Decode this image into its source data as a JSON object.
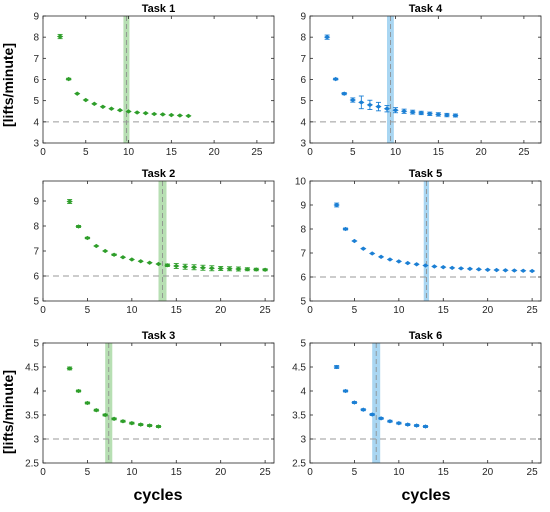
{
  "figure": {
    "ylabel": "[lifts/minute]",
    "xlabel": "cycles"
  },
  "chart_data": [
    {
      "type": "scatter",
      "title": "Task 1",
      "color": "#2e9e2a",
      "band_color": "#9fd49a",
      "xlim": [
        0,
        27
      ],
      "ylim": [
        3,
        9
      ],
      "xticks": [
        0,
        5,
        10,
        15,
        20,
        25
      ],
      "yticks": [
        3,
        4,
        5,
        6,
        7,
        8,
        9
      ],
      "ref_line": 4,
      "band": [
        9.4,
        10.1
      ],
      "band_center": 9.75,
      "x": [
        2,
        3,
        4,
        5,
        6,
        7,
        8,
        9,
        10,
        11,
        12,
        13,
        14,
        15,
        16,
        17
      ],
      "y": [
        8.03,
        6.02,
        5.33,
        5.03,
        4.85,
        4.71,
        4.62,
        4.55,
        4.49,
        4.44,
        4.41,
        4.37,
        4.35,
        4.32,
        4.3,
        4.28
      ],
      "err": [
        0.1,
        0.04,
        0.03,
        0.03,
        0.03,
        0.03,
        0.03,
        0.03,
        0.03,
        0.03,
        0.03,
        0.03,
        0.03,
        0.03,
        0.03,
        0.03
      ]
    },
    {
      "type": "scatter",
      "title": "Task 4",
      "color": "#1b7fd4",
      "band_color": "#8cc8ee",
      "xlim": [
        0,
        27
      ],
      "ylim": [
        3,
        9
      ],
      "xticks": [
        0,
        5,
        10,
        15,
        20,
        25
      ],
      "yticks": [
        3,
        4,
        5,
        6,
        7,
        8,
        9
      ],
      "ref_line": 4,
      "band": [
        9.0,
        9.8
      ],
      "band_center": 9.4,
      "x": [
        2,
        3,
        4,
        5,
        6,
        7,
        8,
        9,
        10,
        11,
        12,
        13,
        14,
        15,
        16,
        17
      ],
      "y": [
        8.0,
        6.02,
        5.33,
        5.03,
        4.92,
        4.8,
        4.72,
        4.62,
        4.55,
        4.5,
        4.46,
        4.42,
        4.38,
        4.35,
        4.32,
        4.3
      ],
      "err": [
        0.1,
        0.04,
        0.05,
        0.1,
        0.3,
        0.22,
        0.2,
        0.15,
        0.12,
        0.1,
        0.09,
        0.08,
        0.08,
        0.08,
        0.08,
        0.07
      ]
    },
    {
      "type": "scatter",
      "title": "Task 2",
      "color": "#2e9e2a",
      "band_color": "#9fd49a",
      "xlim": [
        0,
        26
      ],
      "ylim": [
        5,
        9.8
      ],
      "xticks": [
        0,
        5,
        10,
        15,
        20,
        25
      ],
      "yticks": [
        5,
        6,
        7,
        8,
        9
      ],
      "ref_line": 6,
      "band": [
        13.0,
        13.9
      ],
      "band_center": 13.45,
      "x": [
        3,
        4,
        5,
        6,
        7,
        8,
        9,
        10,
        11,
        12,
        13,
        14,
        15,
        16,
        17,
        18,
        19,
        20,
        21,
        22,
        23,
        24,
        25
      ],
      "y": [
        8.98,
        7.98,
        7.52,
        7.2,
        7.0,
        6.85,
        6.75,
        6.66,
        6.59,
        6.53,
        6.48,
        6.43,
        6.4,
        6.37,
        6.35,
        6.33,
        6.31,
        6.3,
        6.29,
        6.28,
        6.27,
        6.26,
        6.25
      ],
      "err": [
        0.08,
        0.04,
        0.03,
        0.03,
        0.03,
        0.03,
        0.03,
        0.03,
        0.03,
        0.03,
        0.03,
        0.05,
        0.1,
        0.1,
        0.1,
        0.1,
        0.1,
        0.08,
        0.08,
        0.08,
        0.06,
        0.05,
        0.04
      ]
    },
    {
      "type": "scatter",
      "title": "Task 5",
      "color": "#1b7fd4",
      "band_color": "#8cc8ee",
      "xlim": [
        0,
        26
      ],
      "ylim": [
        5,
        10
      ],
      "xticks": [
        0,
        5,
        10,
        15,
        20,
        25
      ],
      "yticks": [
        5,
        6,
        7,
        8,
        9,
        10
      ],
      "ref_line": 6,
      "band": [
        12.8,
        13.4
      ],
      "band_center": 13.1,
      "x": [
        3,
        4,
        5,
        6,
        7,
        8,
        9,
        10,
        11,
        12,
        13,
        14,
        15,
        16,
        17,
        18,
        19,
        20,
        21,
        22,
        23,
        24,
        25
      ],
      "y": [
        9.0,
        8.0,
        7.5,
        7.18,
        6.98,
        6.84,
        6.73,
        6.65,
        6.58,
        6.53,
        6.48,
        6.44,
        6.41,
        6.38,
        6.36,
        6.34,
        6.32,
        6.3,
        6.29,
        6.28,
        6.27,
        6.26,
        6.25
      ],
      "err": [
        0.08,
        0.04,
        0.03,
        0.03,
        0.03,
        0.03,
        0.03,
        0.03,
        0.03,
        0.03,
        0.03,
        0.03,
        0.03,
        0.03,
        0.03,
        0.03,
        0.03,
        0.03,
        0.03,
        0.03,
        0.03,
        0.03,
        0.03
      ]
    },
    {
      "type": "scatter",
      "title": "Task 3",
      "color": "#2e9e2a",
      "band_color": "#9fd49a",
      "xlim": [
        0,
        26
      ],
      "ylim": [
        2.5,
        5
      ],
      "xticks": [
        0,
        5,
        10,
        15,
        20,
        25
      ],
      "yticks": [
        2.5,
        3,
        3.5,
        4,
        4.5,
        5
      ],
      "ref_line": 3,
      "band": [
        7.0,
        7.8
      ],
      "band_center": 7.4,
      "x": [
        3,
        4,
        5,
        6,
        7,
        8,
        9,
        10,
        11,
        12,
        13
      ],
      "y": [
        4.47,
        4.0,
        3.75,
        3.6,
        3.5,
        3.42,
        3.37,
        3.33,
        3.3,
        3.28,
        3.26
      ],
      "err": [
        0.03,
        0.02,
        0.02,
        0.02,
        0.02,
        0.02,
        0.02,
        0.02,
        0.02,
        0.02,
        0.02
      ]
    },
    {
      "type": "scatter",
      "title": "Task 6",
      "color": "#1b7fd4",
      "band_color": "#8cc8ee",
      "xlim": [
        0,
        26
      ],
      "ylim": [
        2.5,
        5
      ],
      "xticks": [
        0,
        5,
        10,
        15,
        20,
        25
      ],
      "yticks": [
        2.5,
        3,
        3.5,
        4,
        4.5,
        5
      ],
      "ref_line": 3,
      "band": [
        7.0,
        7.9
      ],
      "band_center": 7.45,
      "x": [
        3,
        4,
        5,
        6,
        7,
        8,
        9,
        10,
        11,
        12,
        13
      ],
      "y": [
        4.5,
        4.0,
        3.76,
        3.61,
        3.51,
        3.43,
        3.37,
        3.33,
        3.3,
        3.28,
        3.26
      ],
      "err": [
        0.03,
        0.02,
        0.02,
        0.02,
        0.02,
        0.02,
        0.02,
        0.02,
        0.02,
        0.02,
        0.02
      ]
    }
  ]
}
